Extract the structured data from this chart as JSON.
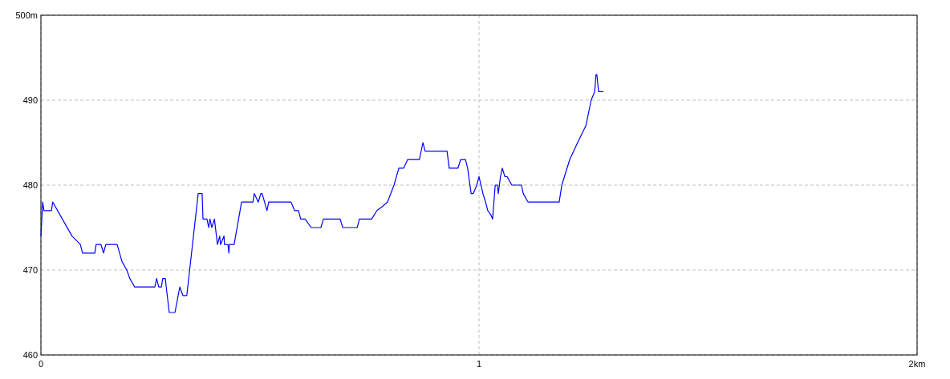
{
  "chart_data": {
    "type": "line",
    "x": [
      0,
      0.004,
      0.007,
      0.024,
      0.027,
      0.071,
      0.09,
      0.095,
      0.123,
      0.126,
      0.137,
      0.143,
      0.148,
      0.174,
      0.185,
      0.196,
      0.203,
      0.214,
      0.26,
      0.264,
      0.269,
      0.275,
      0.278,
      0.284,
      0.286,
      0.293,
      0.306,
      0.317,
      0.324,
      0.333,
      0.359,
      0.368,
      0.37,
      0.379,
      0.383,
      0.386,
      0.39,
      0.396,
      0.403,
      0.408,
      0.41,
      0.418,
      0.419,
      0.427,
      0.429,
      0.43,
      0.441,
      0.458,
      0.484,
      0.487,
      0.496,
      0.502,
      0.505,
      0.516,
      0.52,
      0.571,
      0.579,
      0.588,
      0.593,
      0.603,
      0.617,
      0.639,
      0.645,
      0.683,
      0.689,
      0.722,
      0.727,
      0.755,
      0.767,
      0.78,
      0.791,
      0.806,
      0.817,
      0.828,
      0.837,
      0.864,
      0.872,
      0.877,
      0.927,
      0.932,
      0.952,
      0.958,
      0.969,
      0.974,
      0.982,
      0.987,
      0.995,
      1.0,
      1.009,
      1.015,
      1.02,
      1.027,
      1.031,
      1.037,
      1.042,
      1.044,
      1.049,
      1.053,
      1.059,
      1.064,
      1.075,
      1.097,
      1.101,
      1.112,
      1.183,
      1.189,
      1.207,
      1.225,
      1.244,
      1.256,
      1.264,
      1.267,
      1.269,
      1.273,
      1.284
    ],
    "series": [
      {
        "color": "#0000ff",
        "values": [
          474,
          478,
          477,
          477,
          478,
          474,
          473,
          472,
          472,
          473,
          473,
          472,
          473,
          473,
          471,
          470,
          469,
          468,
          468,
          469,
          468,
          468,
          469,
          469,
          468,
          465,
          465,
          468,
          467,
          467,
          479,
          479,
          476,
          476,
          475,
          476,
          475,
          476,
          473,
          474,
          473,
          474,
          473,
          473,
          472,
          473,
          473,
          478,
          478,
          479,
          478,
          479,
          479,
          477,
          478,
          478,
          477,
          477,
          476,
          476,
          475,
          475,
          476,
          476,
          475,
          475,
          476,
          476,
          477,
          477.5,
          478,
          480,
          482,
          482,
          483,
          483,
          485,
          484,
          484,
          482,
          482,
          483,
          483,
          482,
          479,
          479,
          480,
          481,
          479,
          478,
          477,
          476.5,
          476,
          480,
          480,
          479,
          481,
          482,
          481,
          481,
          480,
          480,
          479,
          478,
          478,
          480,
          483,
          485,
          487,
          490,
          491,
          493,
          493,
          491,
          491
        ]
      }
    ],
    "xlim": [
      0,
      2
    ],
    "ylim": [
      460,
      500
    ],
    "xticks": [
      0,
      1,
      {
        "value": 2,
        "label": "2km"
      }
    ],
    "yticks": [
      460,
      470,
      480,
      490,
      {
        "value": 500,
        "label": "500m"
      }
    ],
    "grid": true,
    "line_style": "solid"
  }
}
